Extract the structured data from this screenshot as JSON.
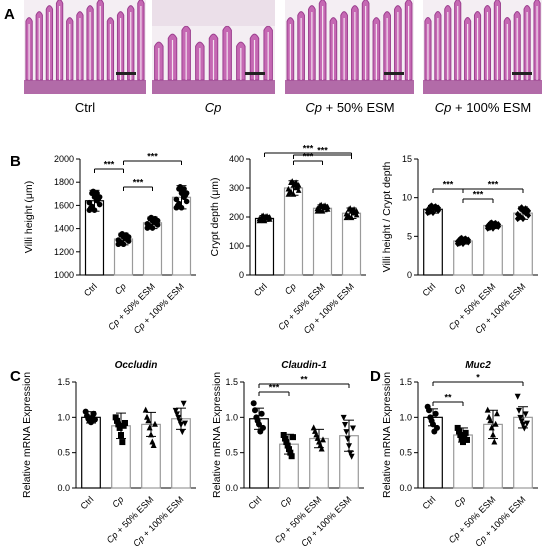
{
  "panels": {
    "A": "A",
    "B": "B",
    "C": "C",
    "D": "D"
  },
  "images": [
    {
      "label_plain": "Ctrl",
      "label_italic": "",
      "label_rest": ""
    },
    {
      "label_plain": "",
      "label_italic": "Cp",
      "label_rest": ""
    },
    {
      "label_plain": "",
      "label_italic": "Cp",
      "label_rest": " + 50% ESM"
    },
    {
      "label_plain": "",
      "label_italic": "Cp",
      "label_rest": " + 100% ESM"
    }
  ],
  "colors": {
    "tissue": "#c568b3",
    "tissue_dark": "#9c3f8f",
    "lumen": "#f4eef3",
    "bars": "#9a9a9a"
  },
  "chart_data": [
    {
      "type": "bar",
      "id": "villi",
      "categories": [
        "Ctrl",
        "Cp",
        "Cp + 50% ESM",
        "Cp + 100% ESM"
      ],
      "values": [
        1640,
        1310,
        1450,
        1670
      ],
      "error": [
        90,
        50,
        50,
        100
      ],
      "ylabel": "Villi height (μm)",
      "ylim": [
        1000,
        2000
      ],
      "yticks": [
        1000,
        1200,
        1400,
        1600,
        1800,
        2000
      ],
      "marker": "circle",
      "sig": [
        {
          "from": 0,
          "to": 1,
          "label": "***"
        },
        {
          "from": 1,
          "to": 3,
          "label": "***"
        },
        {
          "from": 1,
          "to": 2,
          "label": "***"
        }
      ]
    },
    {
      "type": "bar",
      "id": "crypt",
      "categories": [
        "Ctrl",
        "Cp",
        "Cp + 50% ESM",
        "Cp + 100% ESM"
      ],
      "values": [
        195,
        300,
        230,
        213
      ],
      "error": [
        10,
        25,
        12,
        18
      ],
      "ylabel": "Crypt depth (μm)",
      "ylim": [
        0,
        400
      ],
      "yticks": [
        0,
        100,
        200,
        300,
        400
      ],
      "marker": "triangle",
      "sig": [
        {
          "from": 0,
          "to": 3,
          "label": "***"
        },
        {
          "from": 1,
          "to": 2,
          "label": "***"
        },
        {
          "from": 1,
          "to": 3,
          "label": "***"
        }
      ]
    },
    {
      "type": "bar",
      "id": "ratio",
      "categories": [
        "Ctrl",
        "Cp",
        "Cp + 50% ESM",
        "Cp + 100% ESM"
      ],
      "values": [
        8.5,
        4.4,
        6.4,
        8.0
      ],
      "error": [
        0.5,
        0.4,
        0.4,
        0.8
      ],
      "ylabel": "Villi height / Crypt depth",
      "ylim": [
        0,
        15
      ],
      "yticks": [
        0,
        5,
        10,
        15
      ],
      "marker": "diamond",
      "sig": [
        {
          "from": 0,
          "to": 1,
          "label": "***"
        },
        {
          "from": 1,
          "to": 3,
          "label": "***"
        },
        {
          "from": 1,
          "to": 2,
          "label": "***"
        }
      ]
    },
    {
      "type": "bar",
      "id": "occludin",
      "title": "Occludin",
      "categories": [
        "Ctrl",
        "Cp",
        "Cp + 50% ESM",
        "Cp + 100% ESM"
      ],
      "values": [
        1.0,
        0.88,
        0.9,
        0.98
      ],
      "error": [
        0.08,
        0.18,
        0.17,
        0.15
      ],
      "ylabel": "Relative mRNA Expression",
      "ylim": [
        0,
        1.5
      ],
      "yticks": [
        0.0,
        0.5,
        1.0,
        1.5
      ],
      "points": [
        [
          1.08,
          1.02,
          0.98,
          0.95,
          0.93,
          1.0,
          1.05,
          0.97
        ],
        [
          1.0,
          0.95,
          0.9,
          0.85,
          0.75,
          0.65,
          0.88,
          0.92
        ],
        [
          1.1,
          1.0,
          0.95,
          0.85,
          0.75,
          0.65,
          0.6,
          0.9
        ],
        [
          1.1,
          1.05,
          1.0,
          0.95,
          0.9,
          0.8,
          1.2,
          0.92
        ]
      ],
      "sig": []
    },
    {
      "type": "bar",
      "id": "claudin",
      "title": "Claudin-1",
      "categories": [
        "Ctrl",
        "Cp",
        "Cp + 50% ESM",
        "Cp + 100% ESM"
      ],
      "values": [
        0.98,
        0.62,
        0.7,
        0.74
      ],
      "error": [
        0.15,
        0.14,
        0.13,
        0.22
      ],
      "ylabel": "Relative mRNA Expression",
      "ylim": [
        0,
        1.5
      ],
      "yticks": [
        0.0,
        0.5,
        1.0,
        1.5
      ],
      "points": [
        [
          1.2,
          1.1,
          1.0,
          0.95,
          0.9,
          0.8,
          1.05,
          0.85
        ],
        [
          0.75,
          0.7,
          0.65,
          0.6,
          0.55,
          0.5,
          0.45,
          0.72
        ],
        [
          0.85,
          0.8,
          0.75,
          0.7,
          0.65,
          0.6,
          0.55,
          0.68
        ],
        [
          1.0,
          0.9,
          0.8,
          0.7,
          0.6,
          0.5,
          0.45,
          0.85
        ]
      ],
      "sig": [
        {
          "from": 0,
          "to": 1,
          "label": "***"
        },
        {
          "from": 0,
          "to": 3,
          "label": "**"
        }
      ]
    },
    {
      "type": "bar",
      "id": "muc2",
      "title": "Muc2",
      "categories": [
        "Ctrl",
        "Cp",
        "Cp + 50% ESM",
        "Cp + 100% ESM"
      ],
      "values": [
        1.0,
        0.75,
        0.9,
        1.0
      ],
      "error": [
        0.12,
        0.1,
        0.2,
        0.15
      ],
      "ylabel": "Relative mRNA Expression",
      "ylim": [
        0,
        1.5
      ],
      "yticks": [
        0.0,
        0.5,
        1.0,
        1.5
      ],
      "points": [
        [
          1.15,
          1.1,
          1.0,
          0.95,
          0.9,
          0.8,
          1.05,
          0.85
        ],
        [
          0.85,
          0.8,
          0.75,
          0.7,
          0.65,
          0.72,
          0.78,
          0.68
        ],
        [
          1.1,
          1.0,
          0.95,
          0.85,
          0.75,
          0.65,
          0.9,
          1.05
        ],
        [
          1.3,
          1.1,
          1.0,
          0.95,
          0.9,
          0.85,
          1.05,
          0.92
        ]
      ],
      "sig": [
        {
          "from": 0,
          "to": 1,
          "label": "**"
        },
        {
          "from": 0,
          "to": 3,
          "label": "*"
        }
      ]
    }
  ]
}
